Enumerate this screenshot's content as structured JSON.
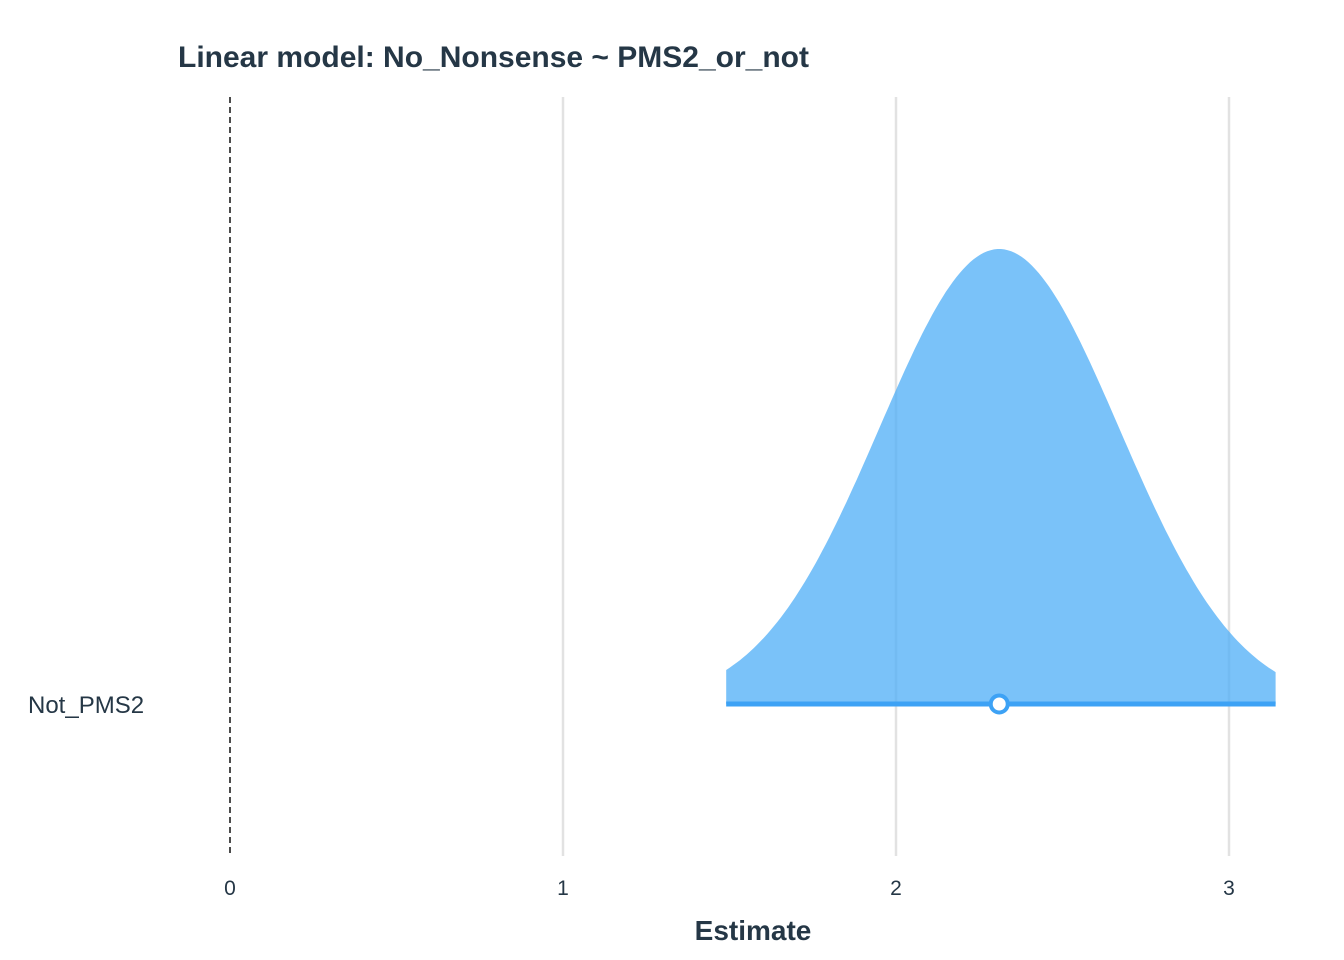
{
  "chart_data": {
    "type": "area",
    "subtype": "posterior-density",
    "title": "Linear model: No_Nonsense ~ PMS2_or_not",
    "xlabel": "Estimate",
    "ylabel": "",
    "xlim": [
      -0.65,
      3.15
    ],
    "x_ticks": [
      0,
      1,
      2,
      3
    ],
    "x_tick_labels": [
      "0",
      "1",
      "2",
      "3"
    ],
    "grid": "vertical",
    "legend": "none",
    "reference_line": {
      "x": 0,
      "style": "dashed"
    },
    "categories": [
      "Not_PMS2"
    ],
    "series": [
      {
        "category": "Not_PMS2",
        "point_estimate": 2.31,
        "interval": [
          1.49,
          3.14
        ],
        "density_mean": 2.31,
        "density_sd": 0.36,
        "density_truncated_at": [
          1.49,
          3.14
        ]
      }
    ],
    "colors": {
      "fill": "#4DADF7",
      "line": "#3DA2F5",
      "point_fill": "#ffffff",
      "grid": "#e2e2e2",
      "text": "#253746",
      "reference": "#111111"
    }
  }
}
